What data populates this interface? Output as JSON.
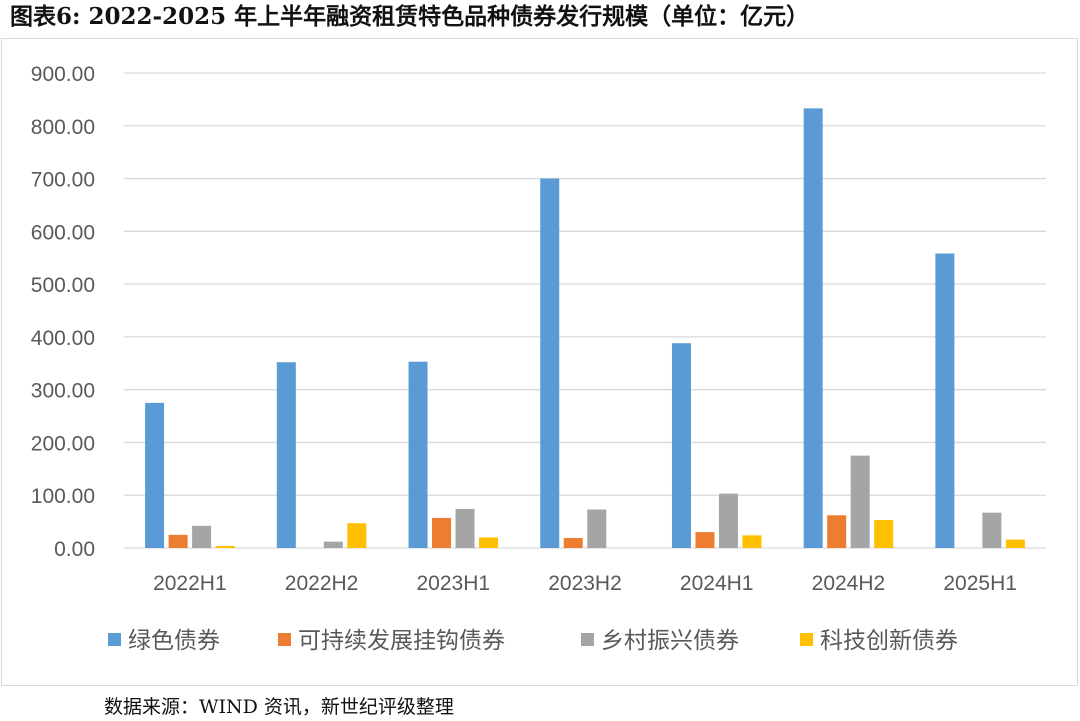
{
  "title": "图表6:   2022-2025 年上半年融资租赁特色品种债券发行规模（单位：亿元）",
  "source": "数据来源：WIND 资讯，新世纪评级整理",
  "colors": {
    "green_bond": "#5b9bd5",
    "sustainability_linked": "#ed7d31",
    "rural_revitalization": "#a5a5a5",
    "tech_innovation": "#ffc000",
    "grid": "#d9d9d9",
    "tick_text": "#595959"
  },
  "chart_data": {
    "type": "bar",
    "title": "",
    "xlabel": "",
    "ylabel": "",
    "ylim": [
      0,
      900
    ],
    "yticks": [
      "0.00",
      "100.00",
      "200.00",
      "300.00",
      "400.00",
      "500.00",
      "600.00",
      "700.00",
      "800.00",
      "900.00"
    ],
    "grid": true,
    "legend_position": "bottom",
    "categories": [
      "2022H1",
      "2022H2",
      "2023H1",
      "2023H2",
      "2024H1",
      "2024H2",
      "2025H1"
    ],
    "series": [
      {
        "name": "绿色债券",
        "color": "#5b9bd5",
        "values": [
          275,
          352,
          353,
          700,
          388,
          833,
          558
        ]
      },
      {
        "name": "可持续发展挂钩债券",
        "color": "#ed7d31",
        "values": [
          25,
          0,
          57,
          19,
          30,
          62,
          0
        ]
      },
      {
        "name": "乡村振兴债券",
        "color": "#a5a5a5",
        "values": [
          42,
          12,
          74,
          73,
          103,
          175,
          67
        ]
      },
      {
        "name": "科技创新债券",
        "color": "#ffc000",
        "values": [
          4,
          47,
          20,
          0,
          24,
          53,
          16
        ]
      }
    ]
  }
}
